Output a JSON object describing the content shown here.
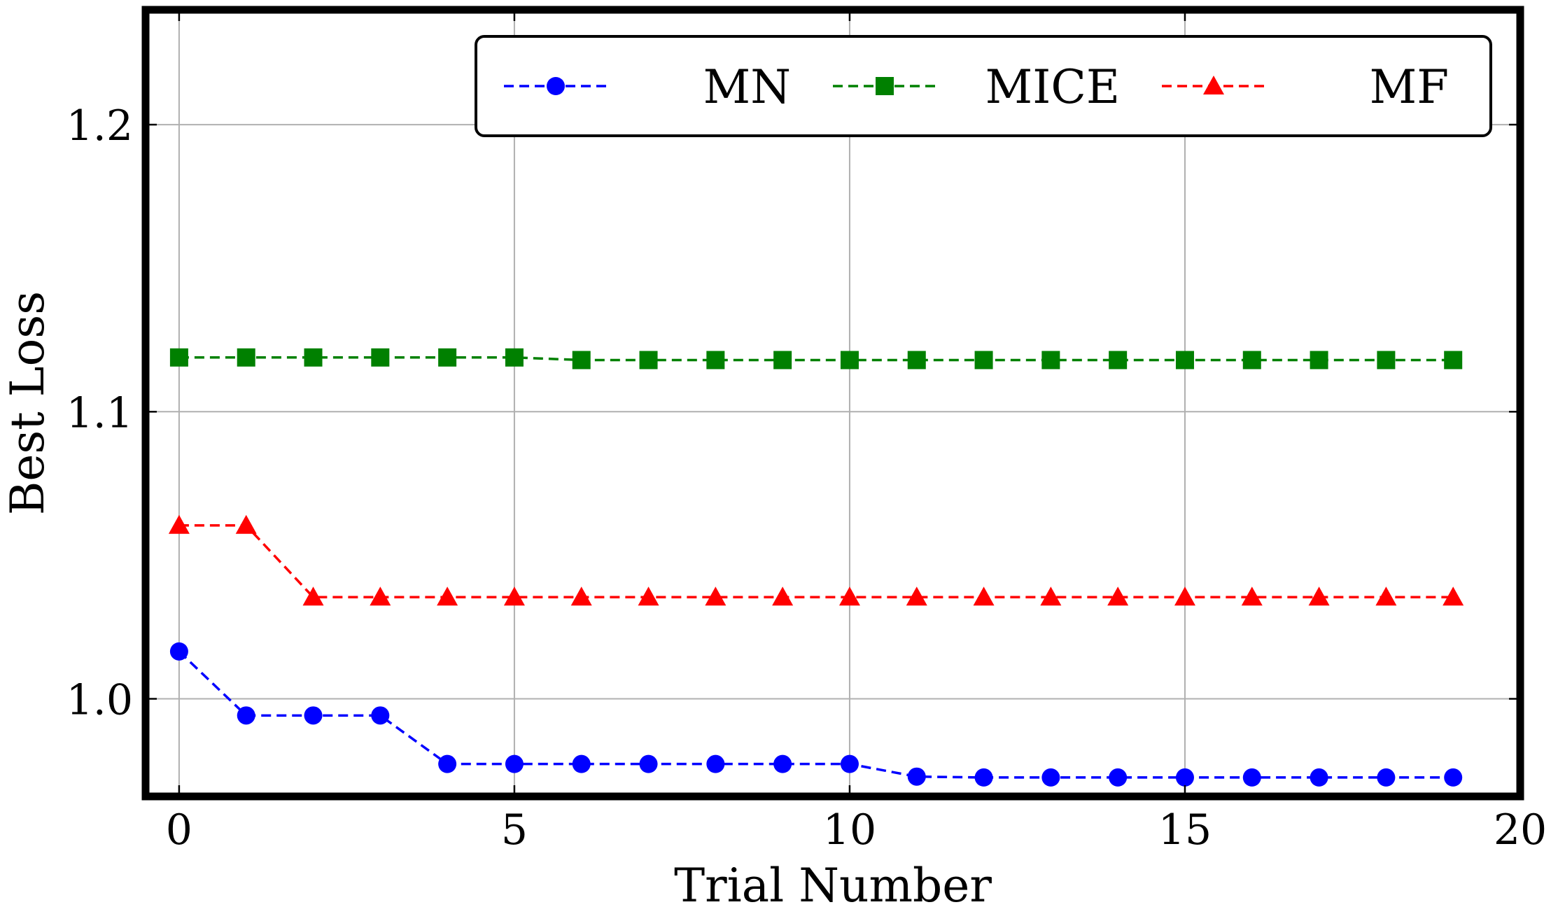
{
  "chart_data": {
    "type": "line",
    "xlabel": "Trial Number",
    "ylabel": "Best Loss",
    "xlim": [
      -0.5,
      20
    ],
    "ylim": [
      0.966,
      1.24
    ],
    "xticks": [
      0,
      5,
      10,
      15,
      20
    ],
    "xtick_labels": [
      "0",
      "5",
      "10",
      "15",
      "20"
    ],
    "yticks": [
      1.0,
      1.1,
      1.2
    ],
    "ytick_labels": [
      "1.0",
      "1.1",
      "1.2"
    ],
    "grid": true,
    "legend": {
      "placement": "top-right",
      "columns": 3
    },
    "x": [
      0,
      1,
      2,
      3,
      4,
      5,
      6,
      7,
      8,
      9,
      10,
      11,
      12,
      13,
      14,
      15,
      16,
      17,
      18,
      19
    ],
    "series": [
      {
        "name": "MN",
        "color": "#0000ff",
        "marker": "circle",
        "values": [
          1.0165,
          0.9942,
          0.9942,
          0.9942,
          0.9773,
          0.9773,
          0.9773,
          0.9773,
          0.9773,
          0.9773,
          0.9773,
          0.9729,
          0.9726,
          0.9726,
          0.9726,
          0.9726,
          0.9726,
          0.9726,
          0.9726,
          0.9726
        ]
      },
      {
        "name": "MICE",
        "color": "#008000",
        "marker": "square",
        "values": [
          1.1189,
          1.1189,
          1.1189,
          1.1189,
          1.1189,
          1.1189,
          1.118,
          1.118,
          1.118,
          1.118,
          1.118,
          1.118,
          1.118,
          1.118,
          1.118,
          1.118,
          1.118,
          1.118,
          1.118,
          1.118
        ]
      },
      {
        "name": "MF",
        "color": "#ff0000",
        "marker": "triangle",
        "values": [
          1.0604,
          1.0604,
          1.0354,
          1.0354,
          1.0354,
          1.0354,
          1.0354,
          1.0354,
          1.0354,
          1.0354,
          1.0354,
          1.0354,
          1.0354,
          1.0354,
          1.0354,
          1.0354,
          1.0354,
          1.0354,
          1.0354,
          1.0354
        ]
      }
    ]
  }
}
